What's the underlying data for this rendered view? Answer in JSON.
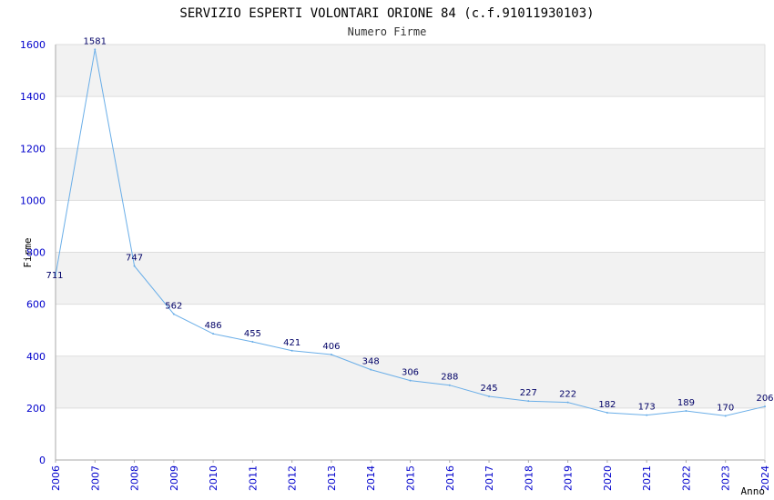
{
  "chart_data": {
    "type": "line",
    "title": "SERVIZIO ESPERTI VOLONTARI ORIONE 84 (c.f.91011930103)",
    "subtitle": "Numero Firme",
    "xlabel": "Anno",
    "ylabel": "Firme",
    "ylim": [
      0,
      1600
    ],
    "yticks": [
      0,
      200,
      400,
      600,
      800,
      1000,
      1200,
      1400,
      1600
    ],
    "grid": true,
    "categories": [
      "2006",
      "2007",
      "2008",
      "2009",
      "2010",
      "2011",
      "2012",
      "2013",
      "2014",
      "2015",
      "2016",
      "2017",
      "2018",
      "2019",
      "2020",
      "2021",
      "2022",
      "2023",
      "2024"
    ],
    "series": [
      {
        "name": "Numero Firme",
        "values": [
          711,
          1581,
          747,
          562,
          486,
          455,
          421,
          406,
          348,
          306,
          288,
          245,
          227,
          222,
          182,
          173,
          189,
          170,
          206
        ]
      }
    ],
    "colors": {
      "line": "#6aaee8",
      "band": "#f2f2f2",
      "grid": "#dddddd",
      "axis": "#aaaaaa",
      "tick_text": "#0000cc",
      "data_text": "#000066"
    }
  }
}
